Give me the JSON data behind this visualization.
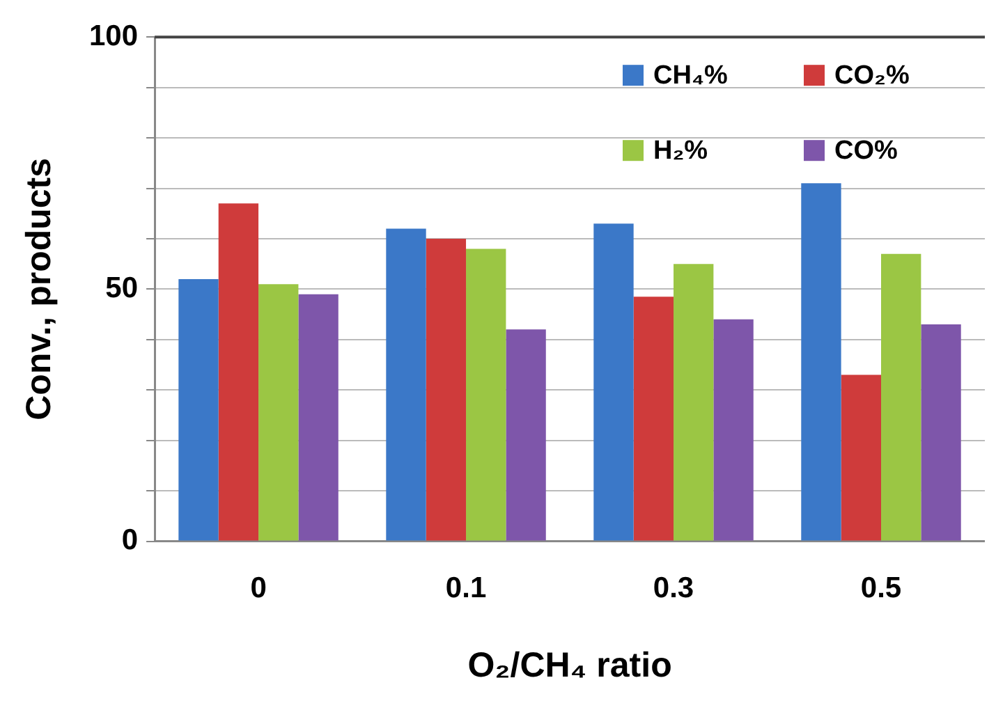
{
  "chart_data": {
    "type": "bar",
    "xlabel": "O₂/CH₄ ratio",
    "ylabel": "Conv., products",
    "categories": [
      "0",
      "0.1",
      "0.3",
      "0.5"
    ],
    "series": [
      {
        "name": "CH₄%",
        "color": "#3b78c8",
        "values": [
          52,
          62,
          63,
          71
        ]
      },
      {
        "name": "CO₂%",
        "color": "#cf3b3b",
        "values": [
          67,
          60,
          48.5,
          33
        ]
      },
      {
        "name": "H₂%",
        "color": "#9bc644",
        "values": [
          51,
          58,
          55,
          57
        ]
      },
      {
        "name": "CO%",
        "color": "#7e56aa",
        "values": [
          49,
          42,
          44,
          43
        ]
      }
    ],
    "ylim": [
      0,
      100
    ],
    "yticks": [
      0,
      {
        "value": 10,
        "label": null
      },
      {
        "value": 20,
        "label": null
      },
      {
        "value": 30,
        "label": null
      },
      {
        "value": 40,
        "label": null
      },
      50,
      {
        "value": 60,
        "label": null
      },
      {
        "value": 70,
        "label": null
      },
      {
        "value": 80,
        "label": null
      },
      {
        "value": 90,
        "label": null
      },
      100
    ],
    "grid": "y",
    "legend": "top right"
  }
}
